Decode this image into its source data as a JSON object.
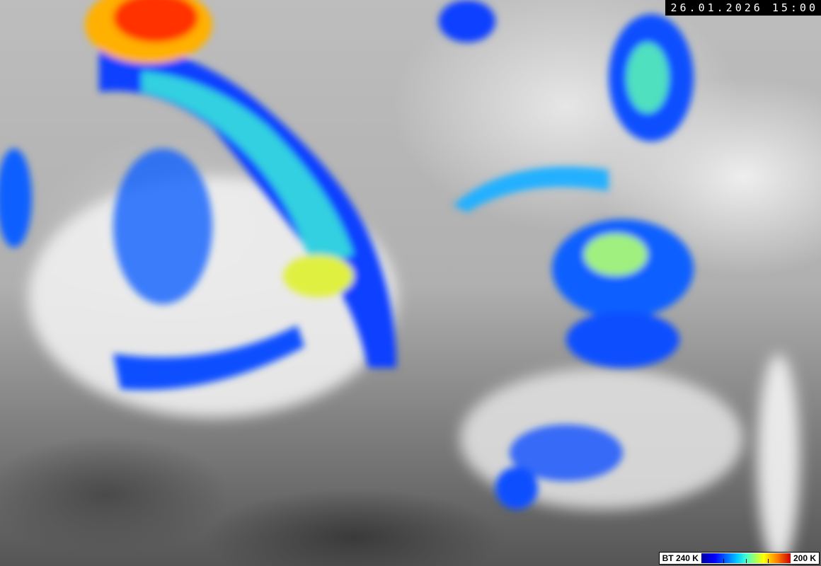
{
  "timestamp": "26.01.2026 15:00",
  "legend": {
    "min_label": "BT 240 K",
    "max_label": "200 K",
    "colors": [
      "#0000a0",
      "#0000ff",
      "#00c8ff",
      "#40ffd0",
      "#ffff00",
      "#ff8000",
      "#cc0000"
    ]
  },
  "image": {
    "type": "infrared satellite brightness temperature",
    "colormap": "gray with color enhancement for cold cloud tops"
  }
}
